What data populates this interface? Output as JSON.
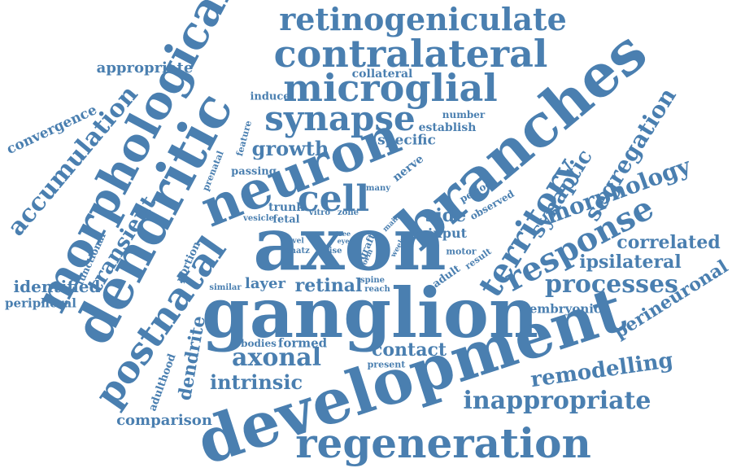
{
  "colors": {
    "word": "#4a7fb0",
    "background": "#ffffff"
  },
  "words": [
    "retinogeniculate",
    "contralateral",
    "microglial",
    "synapse",
    "morphological",
    "dendritic",
    "neuron",
    "cell",
    "branches",
    "axon",
    "ganglion",
    "development",
    "regeneration",
    "postnatal",
    "territory",
    "response",
    "morphology",
    "synaptic",
    "segregation",
    "processes",
    "ipsilateral",
    "correlated",
    "perineuronal",
    "remodelling",
    "inappropriate",
    "contact",
    "axonal",
    "intrinsic",
    "comparison",
    "dendrite",
    "adulthood",
    "identified",
    "peripheral",
    "transient",
    "accumulation",
    "convergence",
    "appropriate",
    "collateral",
    "induce",
    "feature",
    "prenatal",
    "growth",
    "specific",
    "nerve",
    "establish",
    "number",
    "passing",
    "many",
    "trunk",
    "fetal",
    "vitro",
    "zone",
    "period",
    "observed",
    "side",
    "input",
    "functional",
    "portion",
    "vesicle",
    "main",
    "tree",
    "eye",
    "graft",
    "form",
    "week",
    "level",
    "shatz",
    "rise",
    "motor",
    "adult",
    "result",
    "spine",
    "reach",
    "layer",
    "retinal",
    "similar",
    "embryonic",
    "bodies",
    "formed",
    "present"
  ]
}
